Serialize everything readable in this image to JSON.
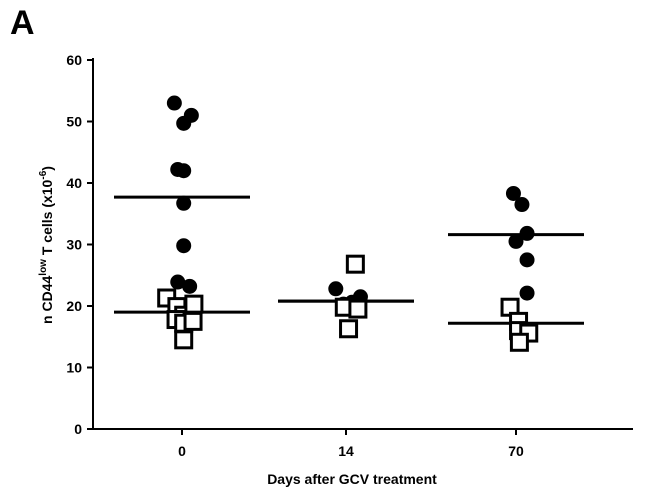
{
  "panel_label": "A",
  "chart_data": {
    "type": "scatter",
    "xlabel": "Days after GCV treatment",
    "ylabel_parts": {
      "base": "n CD44",
      "sup": "low",
      "rest": " T cells (x10",
      "exp": "-6",
      "end": ")"
    },
    "categories": [
      "0",
      "14",
      "70"
    ],
    "ylim": [
      0,
      60
    ],
    "yticks": [
      0,
      10,
      20,
      30,
      40,
      50,
      60
    ],
    "grid": false,
    "series": [
      {
        "marker": "filled-circle",
        "color": "#000000",
        "points": [
          {
            "category": "0",
            "offset": -0.45,
            "y": 53.0
          },
          {
            "category": "0",
            "offset": 0.1,
            "y": 49.7
          },
          {
            "category": "0",
            "offset": 0.55,
            "y": 51.0
          },
          {
            "category": "0",
            "offset": -0.25,
            "y": 42.2
          },
          {
            "category": "0",
            "offset": 0.1,
            "y": 42.0
          },
          {
            "category": "0",
            "offset": 0.1,
            "y": 36.7
          },
          {
            "category": "0",
            "offset": 0.1,
            "y": 29.8
          },
          {
            "category": "0",
            "offset": -0.25,
            "y": 23.9
          },
          {
            "category": "0",
            "offset": 0.45,
            "y": 23.2
          },
          {
            "category": "14",
            "offset": -0.6,
            "y": 22.8
          },
          {
            "category": "14",
            "offset": -0.15,
            "y": 20.3
          },
          {
            "category": "14",
            "offset": 0.35,
            "y": 20.6
          },
          {
            "category": "14",
            "offset": 0.85,
            "y": 21.5
          },
          {
            "category": "14",
            "offset": 0.1,
            "y": 16.5
          },
          {
            "category": "70",
            "offset": -0.15,
            "y": 38.3
          },
          {
            "category": "70",
            "offset": 0.35,
            "y": 36.5
          },
          {
            "category": "70",
            "offset": 0.0,
            "y": 30.5
          },
          {
            "category": "70",
            "offset": 0.65,
            "y": 31.8
          },
          {
            "category": "70",
            "offset": 0.65,
            "y": 27.5
          },
          {
            "category": "70",
            "offset": 0.65,
            "y": 22.1
          }
        ],
        "mean": [
          {
            "category": "0",
            "y": 37.7
          },
          {
            "category": "14",
            "y": 20.8
          },
          {
            "category": "70",
            "y": 31.6
          }
        ]
      },
      {
        "marker": "open-square",
        "color": "#000000",
        "points": [
          {
            "category": "0",
            "offset": -0.9,
            "y": 21.3
          },
          {
            "category": "0",
            "offset": -0.3,
            "y": 19.9
          },
          {
            "category": "0",
            "offset": 0.1,
            "y": 18.5
          },
          {
            "category": "0",
            "offset": 0.7,
            "y": 20.3
          },
          {
            "category": "0",
            "offset": -0.35,
            "y": 17.8
          },
          {
            "category": "0",
            "offset": 0.1,
            "y": 17.2
          },
          {
            "category": "0",
            "offset": 0.65,
            "y": 17.5
          },
          {
            "category": "0",
            "offset": 0.1,
            "y": 14.5
          },
          {
            "category": "14",
            "offset": 0.55,
            "y": 26.8
          },
          {
            "category": "14",
            "offset": -0.1,
            "y": 19.8
          },
          {
            "category": "14",
            "offset": 0.7,
            "y": 19.5
          },
          {
            "category": "14",
            "offset": 0.15,
            "y": 16.3
          },
          {
            "category": "70",
            "offset": -0.35,
            "y": 19.8
          },
          {
            "category": "70",
            "offset": 0.15,
            "y": 17.5
          },
          {
            "category": "70",
            "offset": 0.15,
            "y": 16.0
          },
          {
            "category": "70",
            "offset": 0.75,
            "y": 15.6
          },
          {
            "category": "70",
            "offset": 0.2,
            "y": 14.1
          }
        ],
        "mean": [
          {
            "category": "0",
            "y": 19.0
          },
          {
            "category": "14",
            "y": 20.8
          },
          {
            "category": "70",
            "y": 17.2
          }
        ]
      }
    ]
  }
}
